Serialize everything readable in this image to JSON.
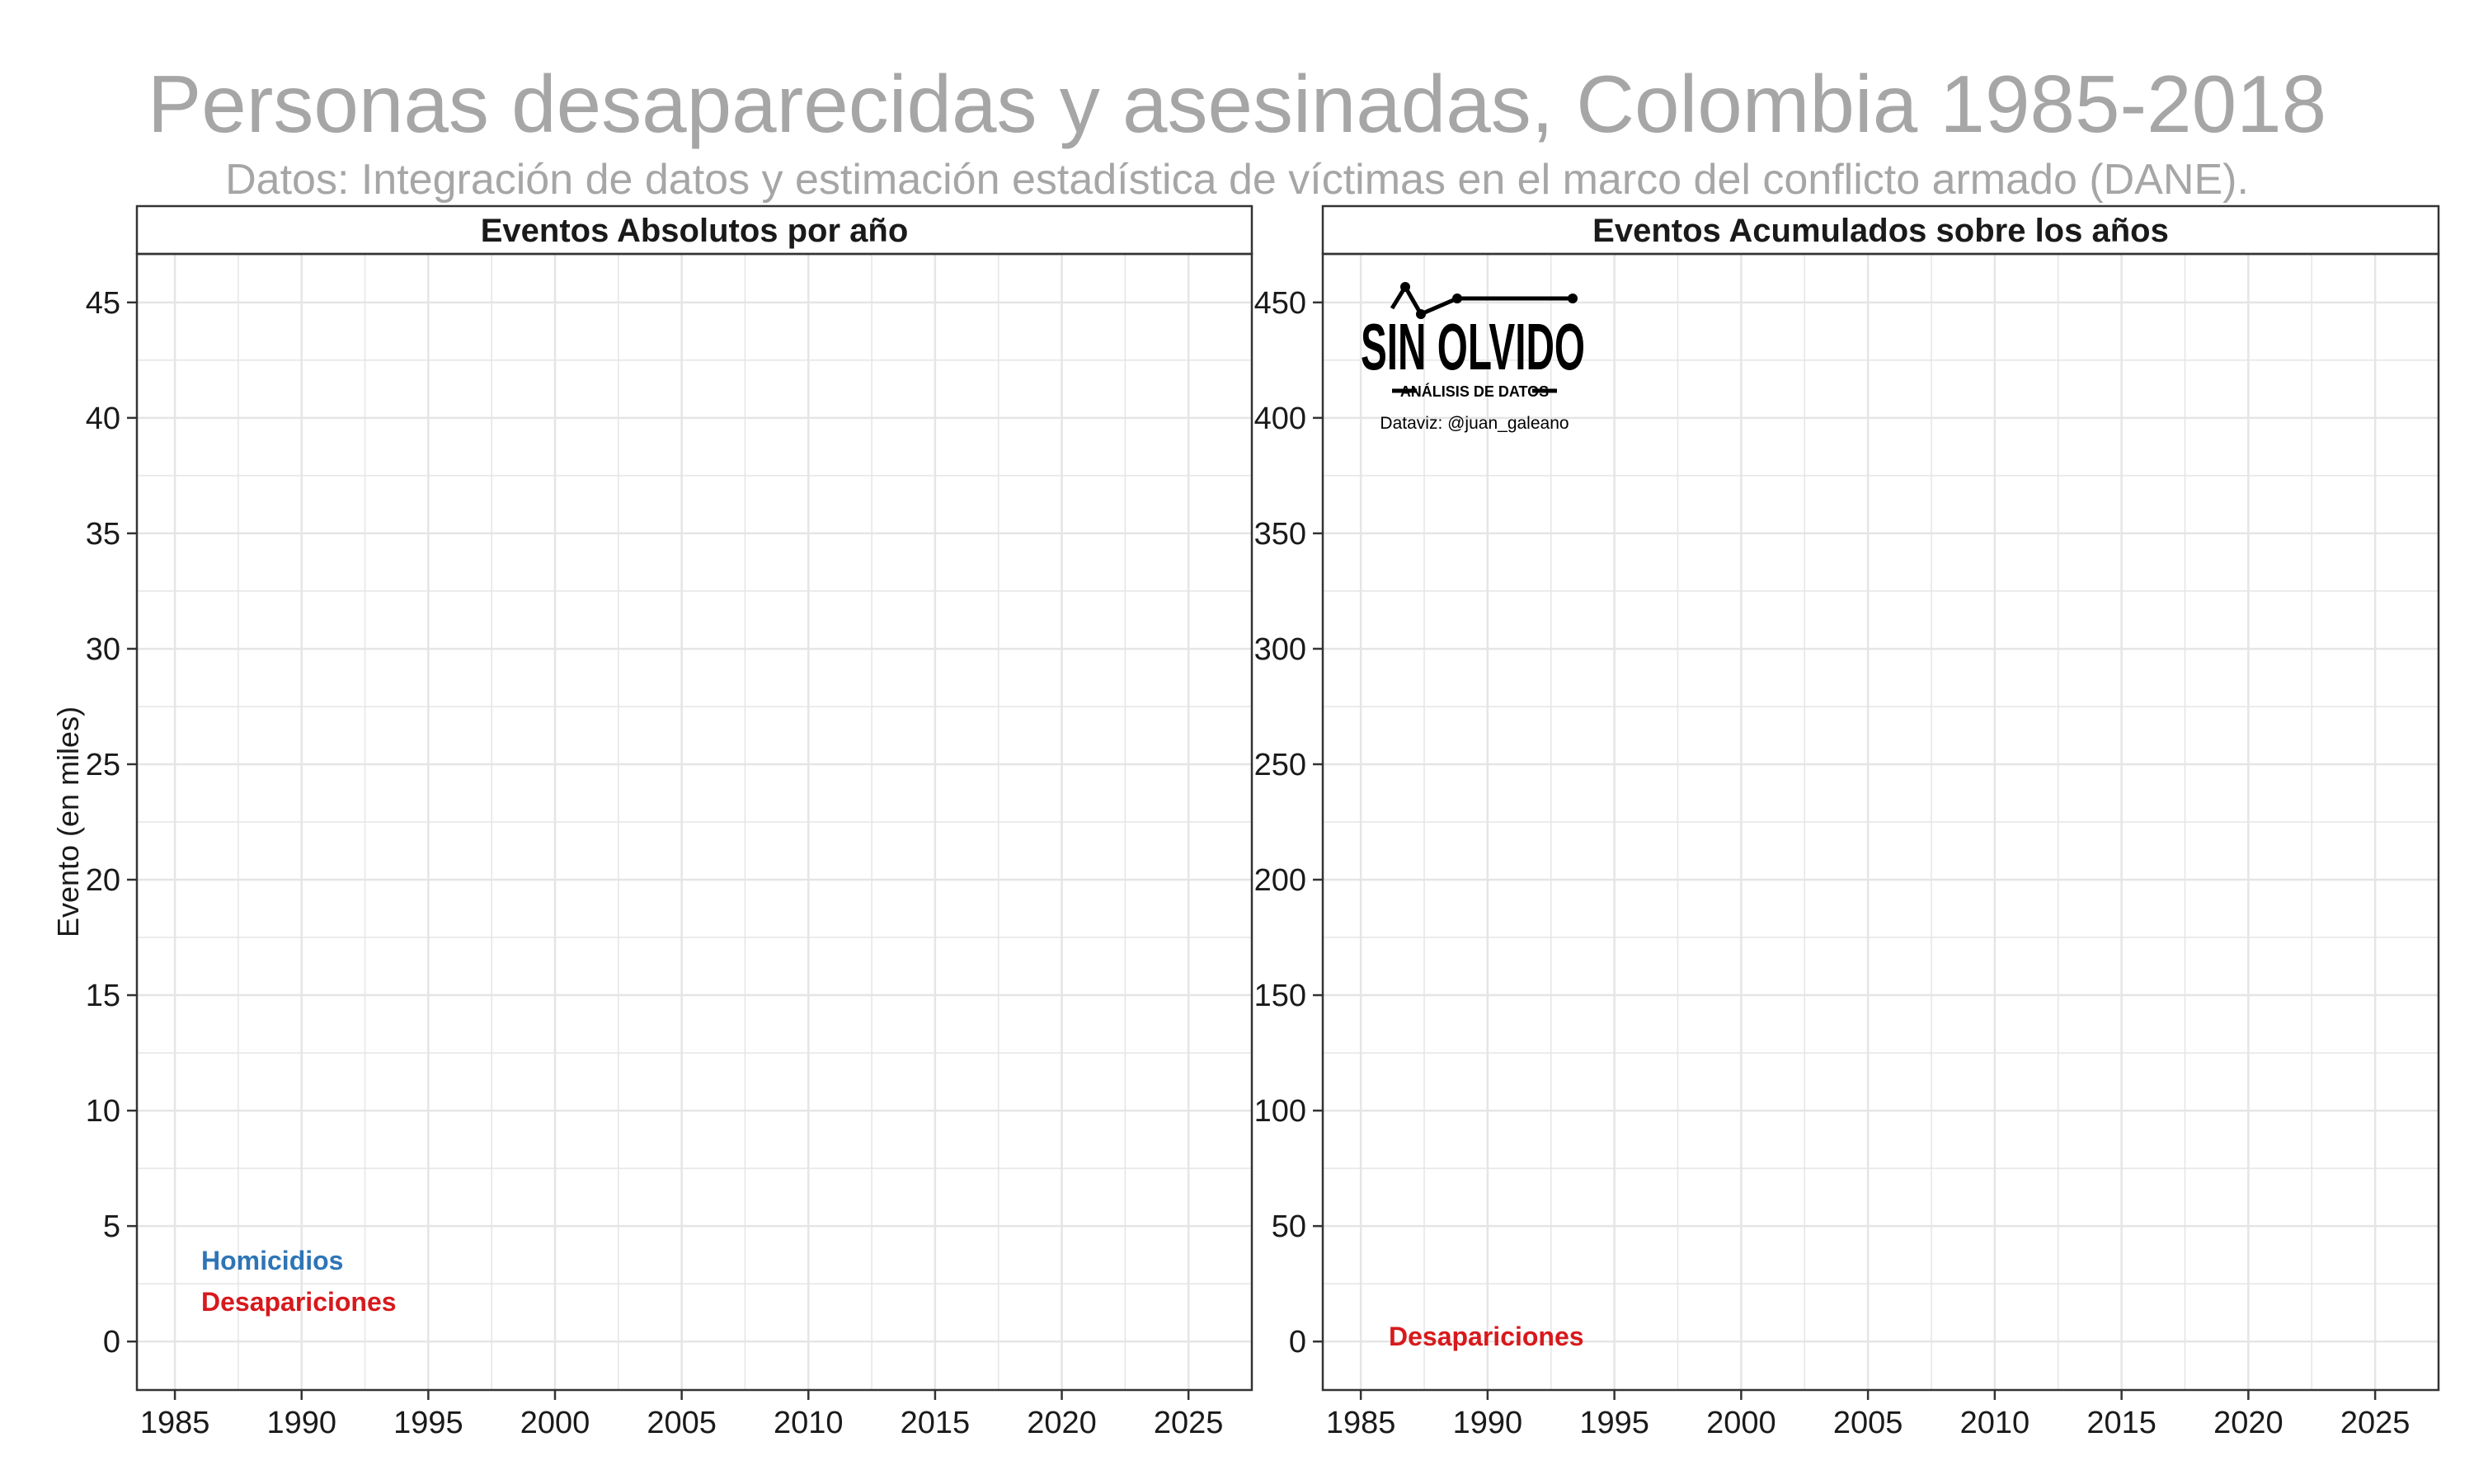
{
  "title": "Personas desaparecidas y asesinadas, Colombia 1985-2018",
  "subtitle": "Datos: Integración de datos y estimación estadística de víctimas en el marco del conflicto armado (DANE).",
  "ylabel": "Evento (en miles)",
  "logo": {
    "name": "SIN OLVIDO",
    "tagline": "ANÁLISIS DE DATOS",
    "credit": "Dataviz: @juan_galeano"
  },
  "colors": {
    "homicidios": "#2e75b6",
    "desapariciones": "#d7191c",
    "title": "#a6a6a6",
    "grid": "#e5e5e5",
    "panel_border": "#333333"
  },
  "chart_data": [
    {
      "type": "line",
      "title": "Eventos Absolutos por año",
      "xlabel": "",
      "ylabel": "Evento (en miles)",
      "xlim": [
        1983.5,
        2027.5
      ],
      "ylim": [
        -2.1,
        47.1
      ],
      "x_ticks": [
        1985,
        1990,
        1995,
        2000,
        2005,
        2010,
        2015,
        2020,
        2025
      ],
      "y_ticks": [
        0,
        5,
        10,
        15,
        20,
        25,
        30,
        35,
        40,
        45
      ],
      "grid": true,
      "series": [
        {
          "name": "Homicidios",
          "x": [],
          "y": []
        },
        {
          "name": "Desapariciones",
          "x": [],
          "y": []
        }
      ]
    },
    {
      "type": "line",
      "title": "Eventos Acumulados sobre los años",
      "xlabel": "",
      "ylabel": "",
      "xlim": [
        1983.5,
        2027.5
      ],
      "ylim": [
        -21,
        471
      ],
      "x_ticks": [
        1985,
        1990,
        1995,
        2000,
        2005,
        2010,
        2015,
        2020,
        2025
      ],
      "y_ticks": [
        0,
        50,
        100,
        150,
        200,
        250,
        300,
        350,
        400,
        450
      ],
      "grid": true,
      "series": [
        {
          "name": "Desapariciones",
          "x": [],
          "y": []
        }
      ]
    }
  ]
}
